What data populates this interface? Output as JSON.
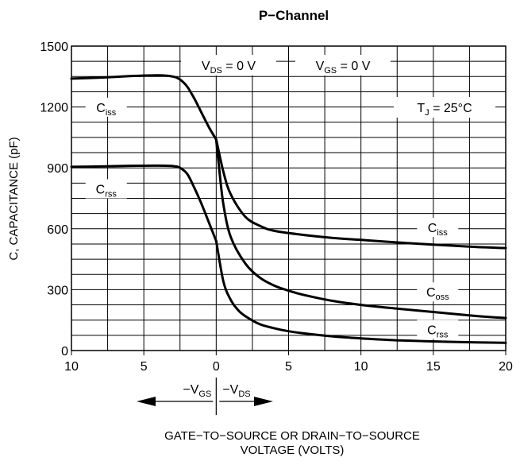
{
  "chart_data": {
    "type": "line",
    "title": "P−Channel",
    "ylabel": "C, CAPACITANCE (pF)",
    "xlabel_line1": "GATE−TO−SOURCE OR DRAIN−TO−SOURCE",
    "xlabel_line2": "VOLTAGE (VOLTS)",
    "x_ticks": [
      "10",
      "5",
      "0",
      "5",
      "10",
      "15",
      "20"
    ],
    "y_ticks": [
      "0",
      "300",
      "600",
      "900",
      "1200",
      "1500"
    ],
    "xlim": [
      -10,
      20
    ],
    "ylim": [
      0,
      1500
    ],
    "grid": true,
    "annotations": {
      "vds_zero": "V_DS = 0 V",
      "vgs_zero": "V_GS = 0 V",
      "tj": "T_J = 25°C",
      "neg_vgs": "−V_GS",
      "neg_vds": "−V_DS"
    },
    "series": [
      {
        "name": "C_iss",
        "x": [
          -10,
          -8,
          -6,
          -4,
          -3,
          -2.5,
          -2,
          -1.5,
          -1,
          -0.5,
          0
        ],
        "y": [
          1340,
          1345,
          1352,
          1356,
          1350,
          1335,
          1300,
          1240,
          1170,
          1100,
          1040
        ]
      },
      {
        "name": "C_rss",
        "x": [
          -10,
          -8,
          -6,
          -4,
          -3,
          -2.5,
          -2,
          -1.5,
          -1,
          -0.5,
          0
        ],
        "y": [
          905,
          907,
          910,
          911,
          909,
          900,
          870,
          800,
          720,
          630,
          540
        ]
      },
      {
        "name": "C_iss",
        "x": [
          0,
          0.5,
          1,
          2,
          3,
          4,
          6,
          8,
          10,
          12,
          15,
          18,
          20
        ],
        "y": [
          1040,
          880,
          770,
          660,
          615,
          590,
          570,
          555,
          545,
          535,
          522,
          510,
          505
        ]
      },
      {
        "name": "C_oss",
        "x": [
          0,
          0.2,
          0.5,
          1,
          2,
          3,
          4,
          5,
          6,
          8,
          10,
          12,
          15,
          18,
          20
        ],
        "y": [
          1040,
          900,
          720,
          560,
          430,
          360,
          320,
          295,
          275,
          245,
          225,
          210,
          190,
          170,
          160
        ]
      },
      {
        "name": "C_rss",
        "x": [
          0,
          0.5,
          1,
          1.5,
          2,
          3,
          4,
          5,
          6,
          8,
          10,
          12,
          15,
          18,
          20
        ],
        "y": [
          540,
          340,
          250,
          200,
          170,
          130,
          110,
          95,
          85,
          70,
          60,
          52,
          45,
          40,
          38
        ]
      }
    ],
    "series_labels": [
      {
        "main": "C",
        "sub": "iss",
        "x": -7.6,
        "y": 1195
      },
      {
        "main": "C",
        "sub": "rss",
        "x": -7.6,
        "y": 793
      },
      {
        "main": "C",
        "sub": "iss",
        "x": 15.3,
        "y": 603
      },
      {
        "main": "C",
        "sub": "oss",
        "x": 15.3,
        "y": 285
      },
      {
        "main": "C",
        "sub": "rss",
        "x": 15.3,
        "y": 100
      }
    ]
  }
}
